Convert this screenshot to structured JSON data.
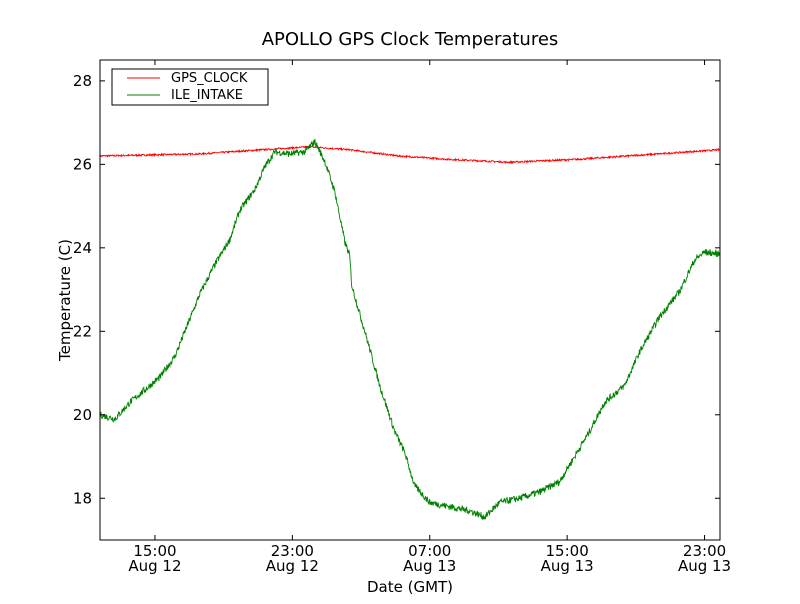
{
  "chart_data": {
    "type": "line",
    "title": "APOLLO GPS Clock Temperatures",
    "xlabel": "Date (GMT)",
    "ylabel": "Temperature (C)",
    "x_units": "hours since Aug 12 00:00 GMT",
    "xlim": [
      11.8,
      47.9
    ],
    "ylim": [
      17,
      28.5
    ],
    "grid": false,
    "legend_position": "top-left",
    "xticks": [
      {
        "value": 15,
        "time": "15:00",
        "date": "Aug 12"
      },
      {
        "value": 23,
        "time": "23:00",
        "date": "Aug 12"
      },
      {
        "value": 31,
        "time": "07:00",
        "date": "Aug 13"
      },
      {
        "value": 39,
        "time": "15:00",
        "date": "Aug 13"
      },
      {
        "value": 47,
        "time": "23:00",
        "date": "Aug 13"
      }
    ],
    "yticks": [
      18,
      20,
      22,
      24,
      26,
      28
    ],
    "series": [
      {
        "name": "GPS_CLOCK",
        "color": "#ff0000",
        "noise": 0.02,
        "x": [
          11.8,
          17.62,
          20.5,
          24.0,
          26.3,
          29.2,
          32.1,
          35.6,
          39.6,
          43.6,
          47.87
        ],
        "y": [
          26.2,
          26.25,
          26.33,
          26.42,
          26.35,
          26.2,
          26.12,
          26.05,
          26.12,
          26.23,
          26.35
        ]
      },
      {
        "name": "ILE_INTAKE",
        "color": "#008000",
        "noise": 0.08,
        "x": [
          11.8,
          12.67,
          13.55,
          14.71,
          15.29,
          16.16,
          17.04,
          17.62,
          18.49,
          19.36,
          19.94,
          20.82,
          21.4,
          21.98,
          22.85,
          23.73,
          24.31,
          24.89,
          25.47,
          26.05,
          26.34,
          26.46,
          27.22,
          28.09,
          28.96,
          29.54,
          30.12,
          31.0,
          32.16,
          33.32,
          34.2,
          35.07,
          36.23,
          37.4,
          38.56,
          39.43,
          40.3,
          41.18,
          42.34,
          43.21,
          44.38,
          45.54,
          46.41,
          46.99,
          47.87
        ],
        "y": [
          20.0,
          19.9,
          20.3,
          20.7,
          20.9,
          21.4,
          22.3,
          22.9,
          23.6,
          24.2,
          24.9,
          25.4,
          25.95,
          26.3,
          26.25,
          26.3,
          26.55,
          26.07,
          25.35,
          24.15,
          23.8,
          23.1,
          22.0,
          20.7,
          19.6,
          19.1,
          18.3,
          17.9,
          17.8,
          17.7,
          17.55,
          17.9,
          18.0,
          18.15,
          18.4,
          19.0,
          19.6,
          20.3,
          20.7,
          21.5,
          22.35,
          22.95,
          23.7,
          23.9,
          23.85
        ]
      }
    ]
  }
}
